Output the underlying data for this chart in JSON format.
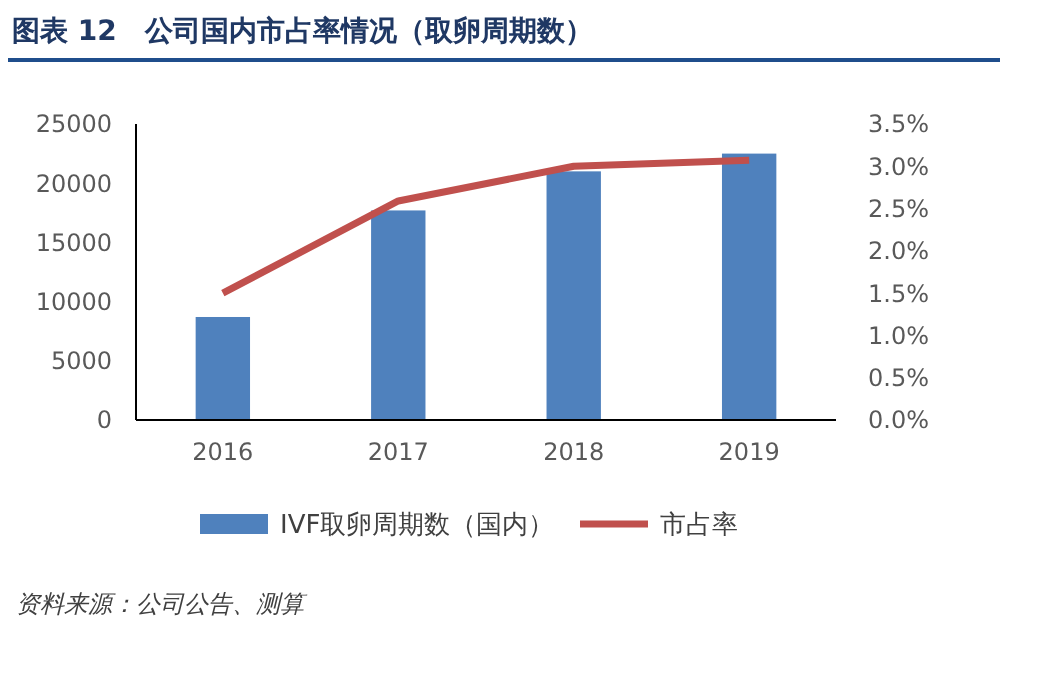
{
  "chart_data": {
    "type": "bar",
    "title": "图表 12　公司国内市占率情况（取卵周期数）",
    "categories": [
      "2016",
      "2017",
      "2018",
      "2019"
    ],
    "series": [
      {
        "name": "IVF取卵周期数（国内）",
        "color": "#4f81bd",
        "values": [
          8700,
          17700,
          21000,
          22500
        ]
      },
      {
        "name": "市占率",
        "type": "line",
        "axis": "y2",
        "color": "#c0504d",
        "values": [
          1.5,
          2.59,
          3.0,
          3.07
        ]
      }
    ],
    "ylim": [
      0,
      25000
    ],
    "yticks": [
      0,
      5000,
      10000,
      15000,
      20000,
      25000
    ],
    "y2lim": [
      0,
      3.5
    ],
    "y2ticks": [
      {
        "value": 0,
        "label": "0.0%"
      },
      {
        "value": 0.5,
        "label": "0.5%"
      },
      {
        "value": 1,
        "label": "1.0%"
      },
      {
        "value": 1.5,
        "label": "1.5%"
      },
      {
        "value": 2,
        "label": "2.0%"
      },
      {
        "value": 2.5,
        "label": "2.5%"
      },
      {
        "value": 3,
        "label": "3.0%"
      },
      {
        "value": 3.5,
        "label": "3.5%"
      }
    ],
    "legend": "bottom",
    "grid": false,
    "marker": "none",
    "annotations": [
      "资料来源：公司公告、测算"
    ]
  }
}
